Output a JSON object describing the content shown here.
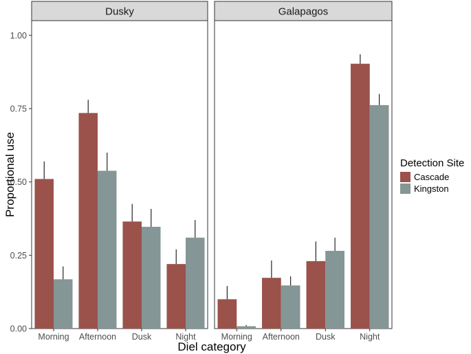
{
  "chart_data": {
    "type": "bar",
    "xlabel": "Diel category",
    "ylabel": "Proportional use",
    "ylim": [
      0,
      1.05
    ],
    "yticks": [
      0.0,
      0.25,
      0.5,
      0.75,
      1.0
    ],
    "ytick_labels": [
      "0.00",
      "0.25",
      "0.50",
      "0.75",
      "1.00"
    ],
    "categories": [
      "Morning",
      "Afternoon",
      "Dusk",
      "Night"
    ],
    "legend": {
      "title": "Detection Site",
      "position": "right",
      "entries": [
        {
          "name": "Cascade",
          "color": "#9a524b"
        },
        {
          "name": "Kingston",
          "color": "#849695"
        }
      ]
    },
    "panels": [
      {
        "title": "Dusky",
        "series": [
          {
            "name": "Cascade",
            "values": [
              0.51,
              0.735,
              0.365,
              0.22
            ],
            "err_upper": [
              0.57,
              0.78,
              0.425,
              0.27
            ]
          },
          {
            "name": "Kingston",
            "values": [
              0.168,
              0.538,
              0.347,
              0.31
            ],
            "err_upper": [
              0.212,
              0.6,
              0.408,
              0.37
            ]
          }
        ]
      },
      {
        "title": "Galapagos",
        "series": [
          {
            "name": "Cascade",
            "values": [
              0.1,
              0.173,
              0.23,
              0.903
            ],
            "err_upper": [
              0.145,
              0.232,
              0.297,
              0.935
            ]
          },
          {
            "name": "Kingston",
            "values": [
              0.008,
              0.147,
              0.265,
              0.762
            ],
            "err_upper": [
              0.012,
              0.178,
              0.31,
              0.8
            ]
          }
        ]
      }
    ]
  }
}
